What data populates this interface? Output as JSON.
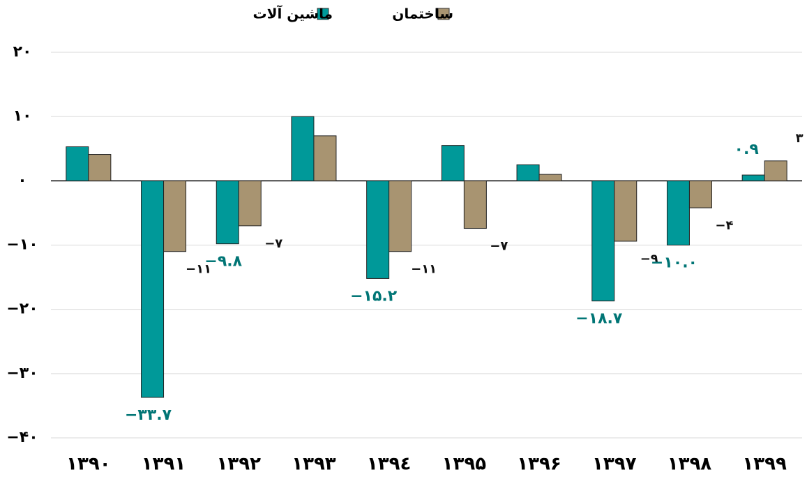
{
  "chart_data": {
    "type": "bar",
    "categories": [
      "۱۳۹۰",
      "۱۳۹۱",
      "۱۳۹۲",
      "۱۳۹۳",
      "۱۳۹٤",
      "۱۳۹۵",
      "۱۳۹۶",
      "۱۳۹۷",
      "۱۳۹۸",
      "۱۳۹۹"
    ],
    "series": [
      {
        "name": "ماشین آلات",
        "color": "#009999",
        "values": [
          5.3,
          -33.7,
          -9.8,
          10,
          -15.2,
          5.5,
          2.5,
          -18.7,
          -10.0,
          0.9
        ],
        "value_labels": [
          null,
          "−۳۳.۷",
          "−۹.۸",
          null,
          "−۱۵.۲",
          null,
          null,
          "−۱۸.۷",
          "−۱۰.۰",
          "۰.۹"
        ],
        "label_color": "#007575"
      },
      {
        "name": "ساختمان",
        "color": "#a89471",
        "values": [
          4.1,
          -11,
          -7,
          7,
          -11,
          -7.4,
          1,
          -9.4,
          -4.2,
          3.1
        ],
        "value_labels": [
          null,
          "−۱۱",
          "−۷",
          null,
          "−۱۱",
          "−۷",
          null,
          "−۹",
          "−۴",
          "۳"
        ],
        "label_color": "#111111"
      }
    ],
    "ylim": [
      -40,
      20
    ],
    "yticks": [
      {
        "value": 20,
        "label": "۲۰"
      },
      {
        "value": 10,
        "label": "۱۰"
      },
      {
        "value": 0,
        "label": "۰"
      },
      {
        "value": -10,
        "label": "−۱۰"
      },
      {
        "value": -20,
        "label": "−۲۰"
      },
      {
        "value": -30,
        "label": "−۳۰"
      },
      {
        "value": -40,
        "label": "−۴۰"
      }
    ],
    "grid": true
  }
}
